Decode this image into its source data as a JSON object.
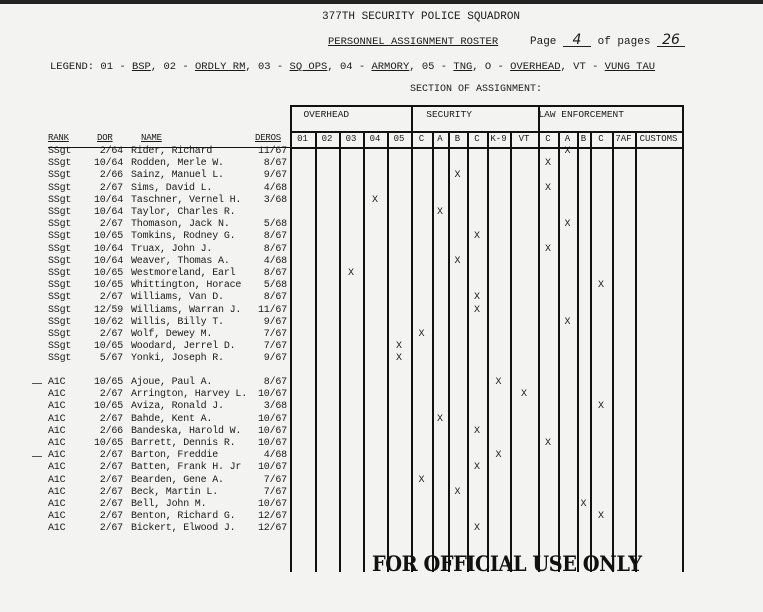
{
  "header": {
    "unit": "377TH SECURITY POLICE SQUADRON",
    "title": "PERSONNEL ASSIGNMENT ROSTER",
    "page_label": "Page",
    "page_number": "4",
    "of_pages_label": "of pages",
    "total_pages": "26"
  },
  "legend": {
    "label": "LEGEND:",
    "items": [
      {
        "code": "01",
        "label": "BSP"
      },
      {
        "code": "02",
        "label": "ORDLY RM"
      },
      {
        "code": "03",
        "label": "SQ OPS"
      },
      {
        "code": "04",
        "label": "ARMORY"
      },
      {
        "code": "05",
        "label": "TNG"
      },
      {
        "code": "O",
        "label": "OVERHEAD"
      },
      {
        "code": "VT",
        "label": "VUNG TAU"
      }
    ]
  },
  "section_title": "SECTION OF ASSIGNMENT:",
  "groups": [
    "OVERHEAD",
    "SECURITY",
    "LAW ENFORCEMENT"
  ],
  "text_headers": {
    "rank": "RANK",
    "dor": "DOR",
    "name": "NAME",
    "deros": "DEROS"
  },
  "columns": [
    "01",
    "02",
    "03",
    "04",
    "05",
    "C",
    "A",
    "B",
    "C",
    "K-9",
    "VT",
    "C",
    "A",
    "B",
    "C",
    "7AF",
    "CUSTOMS"
  ],
  "mark_symbol": "X",
  "rows_ssgt": [
    {
      "rank": "SSgt",
      "dor": "2/64",
      "name": "Rider, Richard",
      "deros": "11/67",
      "marks": [
        12
      ]
    },
    {
      "rank": "SSgt",
      "dor": "10/64",
      "name": "Rodden, Merle W.",
      "deros": "8/67",
      "marks": [
        11
      ]
    },
    {
      "rank": "SSgt",
      "dor": "2/66",
      "name": "Sainz, Manuel L.",
      "deros": "9/67",
      "marks": [
        7
      ]
    },
    {
      "rank": "SSgt",
      "dor": "2/67",
      "name": "Sims, David L.",
      "deros": "4/68",
      "marks": [
        11
      ]
    },
    {
      "rank": "SSgt",
      "dor": "10/64",
      "name": "Taschner, Vernel H.",
      "deros": "3/68",
      "marks": [
        3
      ]
    },
    {
      "rank": "SSgt",
      "dor": "10/64",
      "name": "Taylor, Charles R.",
      "deros": "",
      "marks": [
        6
      ]
    },
    {
      "rank": "SSgt",
      "dor": "2/67",
      "name": "Thomason, Jack N.",
      "deros": "5/68",
      "marks": [
        12
      ]
    },
    {
      "rank": "SSgt",
      "dor": "10/65",
      "name": "Tomkins, Rodney G.",
      "deros": "8/67",
      "marks": [
        8
      ]
    },
    {
      "rank": "SSgt",
      "dor": "10/64",
      "name": "Truax, John J.",
      "deros": "8/67",
      "marks": [
        11
      ]
    },
    {
      "rank": "SSgt",
      "dor": "10/64",
      "name": "Weaver, Thomas A.",
      "deros": "4/68",
      "marks": [
        7
      ]
    },
    {
      "rank": "SSgt",
      "dor": "10/65",
      "name": "Westmoreland, Earl",
      "deros": "8/67",
      "marks": [
        2
      ]
    },
    {
      "rank": "SSgt",
      "dor": "10/65",
      "name": "Whittington, Horace",
      "deros": "5/68",
      "marks": [
        14
      ]
    },
    {
      "rank": "SSgt",
      "dor": "2/67",
      "name": "Williams, Van D.",
      "deros": "8/67",
      "marks": [
        8
      ]
    },
    {
      "rank": "SSgt",
      "dor": "12/59",
      "name": "Williams, Warran J.",
      "deros": "11/67",
      "marks": [
        8
      ]
    },
    {
      "rank": "SSgt",
      "dor": "10/62",
      "name": "Willis, Billy T.",
      "deros": "9/67",
      "marks": [
        12
      ]
    },
    {
      "rank": "SSgt",
      "dor": "2/67",
      "name": "Wolf, Dewey M.",
      "deros": "7/67",
      "marks": [
        5
      ]
    },
    {
      "rank": "SSgt",
      "dor": "10/65",
      "name": "Woodard, Jerrel D.",
      "deros": "7/67",
      "marks": [
        4
      ]
    },
    {
      "rank": "SSgt",
      "dor": "5/67",
      "name": "Yonki, Joseph R.",
      "deros": "9/67",
      "marks": [
        4
      ]
    }
  ],
  "rows_a1c": [
    {
      "rank": "A1C",
      "dor": "10/65",
      "name": "Ajoue, Paul A.",
      "deros": "8/67",
      "marks": [
        9
      ]
    },
    {
      "rank": "A1C",
      "dor": "2/67",
      "name": "Arrington, Harvey L.",
      "deros": "10/67",
      "marks": [
        10
      ]
    },
    {
      "rank": "A1C",
      "dor": "10/65",
      "name": "Aviza, Ronald J.",
      "deros": "3/68",
      "marks": [
        14
      ]
    },
    {
      "rank": "A1C",
      "dor": "2/67",
      "name": "Bahde, Kent A.",
      "deros": "10/67",
      "marks": [
        6
      ]
    },
    {
      "rank": "A1C",
      "dor": "2/66",
      "name": "Bandeska, Harold W.",
      "deros": "10/67",
      "marks": [
        8
      ]
    },
    {
      "rank": "A1C",
      "dor": "10/65",
      "name": "Barrett, Dennis R.",
      "deros": "10/67",
      "marks": [
        11
      ]
    },
    {
      "rank": "A1C",
      "dor": "2/67",
      "name": "Barton, Freddie",
      "deros": "4/68",
      "marks": [
        9
      ]
    },
    {
      "rank": "A1C",
      "dor": "2/67",
      "name": "Batten, Frank H. Jr",
      "deros": "10/67",
      "marks": [
        8
      ]
    },
    {
      "rank": "A1C",
      "dor": "2/67",
      "name": "Bearden, Gene A.",
      "deros": "7/67",
      "marks": [
        5
      ]
    },
    {
      "rank": "A1C",
      "dor": "2/67",
      "name": "Beck, Martin L.",
      "deros": "7/67",
      "marks": [
        7
      ]
    },
    {
      "rank": "A1C",
      "dor": "2/67",
      "name": "Bell, John M.",
      "deros": "10/67",
      "marks": [
        13
      ]
    },
    {
      "rank": "A1C",
      "dor": "2/67",
      "name": "Benton, Richard G.",
      "deros": "12/67",
      "marks": [
        14
      ]
    },
    {
      "rank": "A1C",
      "dor": "2/67",
      "name": "Bickert, Elwood J.",
      "deros": "12/67",
      "marks": [
        8
      ]
    }
  ],
  "stamp": "FOR OFFICIAL USE ONLY"
}
